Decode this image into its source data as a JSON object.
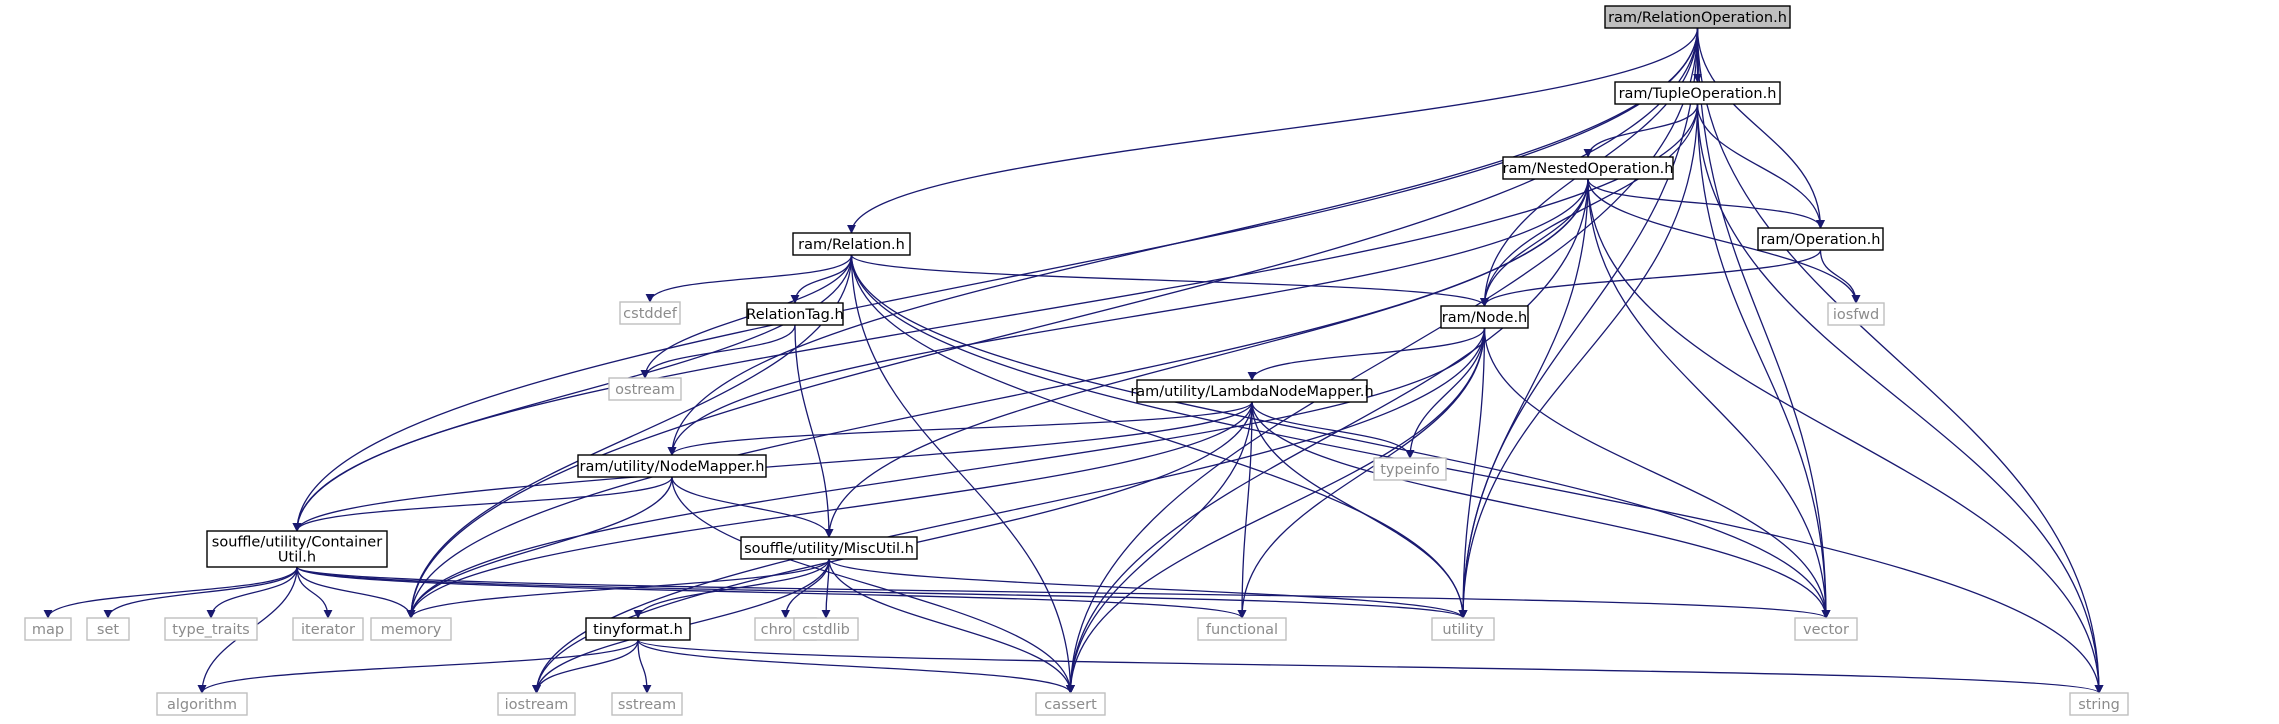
{
  "colors": {
    "edge": "#191970",
    "project_border": "#000000",
    "system_border": "#bfbfbf",
    "system_text": "#8c8c8c",
    "root_fill": "#bfbfbf"
  },
  "nodes": [
    {
      "id": "relop",
      "label": "ram/RelationOperation.h",
      "kind": "root"
    },
    {
      "id": "tupleop",
      "label": "ram/TupleOperation.h",
      "kind": "project"
    },
    {
      "id": "nestedop",
      "label": "ram/NestedOperation.h",
      "kind": "project"
    },
    {
      "id": "relation",
      "label": "ram/Relation.h",
      "kind": "project"
    },
    {
      "id": "operation",
      "label": "ram/Operation.h",
      "kind": "project"
    },
    {
      "id": "node",
      "label": "ram/Node.h",
      "kind": "project"
    },
    {
      "id": "cstddef",
      "label": "cstddef",
      "kind": "system"
    },
    {
      "id": "reltag",
      "label": "RelationTag.h",
      "kind": "project"
    },
    {
      "id": "iosfwd",
      "label": "iosfwd",
      "kind": "system"
    },
    {
      "id": "ostream",
      "label": "ostream",
      "kind": "system"
    },
    {
      "id": "lambda",
      "label": "ram/utility/LambdaNodeMapper.h",
      "kind": "project"
    },
    {
      "id": "typeinfo",
      "label": "typeinfo",
      "kind": "system"
    },
    {
      "id": "nodemapper",
      "label": "ram/utility/NodeMapper.h",
      "kind": "project"
    },
    {
      "id": "container",
      "label": "souffle/utility/ContainerUtil.h",
      "label_lines": [
        "souffle/utility/Container",
        "Util.h"
      ],
      "kind": "project"
    },
    {
      "id": "miscutil",
      "label": "souffle/utility/MiscUtil.h",
      "kind": "project"
    },
    {
      "id": "map",
      "label": "map",
      "kind": "system"
    },
    {
      "id": "set",
      "label": "set",
      "kind": "system"
    },
    {
      "id": "typetraits",
      "label": "type_traits",
      "kind": "system"
    },
    {
      "id": "iterator",
      "label": "iterator",
      "kind": "system"
    },
    {
      "id": "memory",
      "label": "memory",
      "kind": "system"
    },
    {
      "id": "chrono",
      "label": "chrono",
      "kind": "system"
    },
    {
      "id": "cstdlib",
      "label": "cstdlib",
      "kind": "system"
    },
    {
      "id": "functional",
      "label": "functional",
      "kind": "system"
    },
    {
      "id": "utility",
      "label": "utility",
      "kind": "system"
    },
    {
      "id": "vector",
      "label": "vector",
      "kind": "system"
    },
    {
      "id": "tinyformat",
      "label": "tinyformat.h",
      "kind": "project"
    },
    {
      "id": "algorithm",
      "label": "algorithm",
      "kind": "system"
    },
    {
      "id": "iostream",
      "label": "iostream",
      "kind": "system"
    },
    {
      "id": "sstream",
      "label": "sstream",
      "kind": "system"
    },
    {
      "id": "cassert",
      "label": "cassert",
      "kind": "system"
    },
    {
      "id": "string",
      "label": "string",
      "kind": "system"
    }
  ],
  "edges": [
    [
      "relop",
      "tupleop"
    ],
    [
      "relop",
      "relation"
    ],
    [
      "relop",
      "operation"
    ],
    [
      "relop",
      "node"
    ],
    [
      "relop",
      "nodemapper"
    ],
    [
      "relop",
      "container"
    ],
    [
      "relop",
      "memory"
    ],
    [
      "relop",
      "utility"
    ],
    [
      "relop",
      "vector"
    ],
    [
      "relop",
      "cassert"
    ],
    [
      "relop",
      "string"
    ],
    [
      "tupleop",
      "nestedop"
    ],
    [
      "tupleop",
      "operation"
    ],
    [
      "tupleop",
      "node"
    ],
    [
      "tupleop",
      "container"
    ],
    [
      "tupleop",
      "utility"
    ],
    [
      "tupleop",
      "vector"
    ],
    [
      "tupleop",
      "string"
    ],
    [
      "nestedop",
      "operation"
    ],
    [
      "nestedop",
      "node"
    ],
    [
      "nestedop",
      "nodemapper"
    ],
    [
      "nestedop",
      "miscutil"
    ],
    [
      "nestedop",
      "memory"
    ],
    [
      "nestedop",
      "utility"
    ],
    [
      "nestedop",
      "vector"
    ],
    [
      "nestedop",
      "cassert"
    ],
    [
      "nestedop",
      "iosfwd"
    ],
    [
      "nestedop",
      "string"
    ],
    [
      "relation",
      "node"
    ],
    [
      "relation",
      "cstddef"
    ],
    [
      "relation",
      "reltag"
    ],
    [
      "relation",
      "ostream"
    ],
    [
      "relation",
      "container"
    ],
    [
      "relation",
      "memory"
    ],
    [
      "relation",
      "utility"
    ],
    [
      "relation",
      "vector"
    ],
    [
      "relation",
      "cassert"
    ],
    [
      "relation",
      "string"
    ],
    [
      "operation",
      "node"
    ],
    [
      "operation",
      "iosfwd"
    ],
    [
      "node",
      "lambda"
    ],
    [
      "node",
      "typeinfo"
    ],
    [
      "node",
      "memory"
    ],
    [
      "node",
      "iostream"
    ],
    [
      "node",
      "functional"
    ],
    [
      "node",
      "utility"
    ],
    [
      "node",
      "vector"
    ],
    [
      "node",
      "cassert"
    ],
    [
      "reltag",
      "ostream"
    ],
    [
      "reltag",
      "miscutil"
    ],
    [
      "lambda",
      "nodemapper"
    ],
    [
      "lambda",
      "typeinfo"
    ],
    [
      "lambda",
      "container"
    ],
    [
      "lambda",
      "memory"
    ],
    [
      "lambda",
      "functional"
    ],
    [
      "lambda",
      "utility"
    ],
    [
      "lambda",
      "vector"
    ],
    [
      "lambda",
      "cassert"
    ],
    [
      "lambda",
      "iostream"
    ],
    [
      "nodemapper",
      "container"
    ],
    [
      "nodemapper",
      "miscutil"
    ],
    [
      "nodemapper",
      "memory"
    ],
    [
      "nodemapper",
      "cassert"
    ],
    [
      "container",
      "map"
    ],
    [
      "container",
      "set"
    ],
    [
      "container",
      "typetraits"
    ],
    [
      "container",
      "iterator"
    ],
    [
      "container",
      "memory"
    ],
    [
      "container",
      "algorithm"
    ],
    [
      "container",
      "functional"
    ],
    [
      "container",
      "utility"
    ],
    [
      "container",
      "vector"
    ],
    [
      "miscutil",
      "tinyformat"
    ],
    [
      "miscutil",
      "chrono"
    ],
    [
      "miscutil",
      "cstdlib"
    ],
    [
      "miscutil",
      "memory"
    ],
    [
      "miscutil",
      "utility"
    ],
    [
      "miscutil",
      "iostream"
    ],
    [
      "miscutil",
      "cassert"
    ],
    [
      "tinyformat",
      "algorithm"
    ],
    [
      "tinyformat",
      "iostream"
    ],
    [
      "tinyformat",
      "sstream"
    ],
    [
      "tinyformat",
      "cassert"
    ],
    [
      "tinyformat",
      "string"
    ]
  ]
}
